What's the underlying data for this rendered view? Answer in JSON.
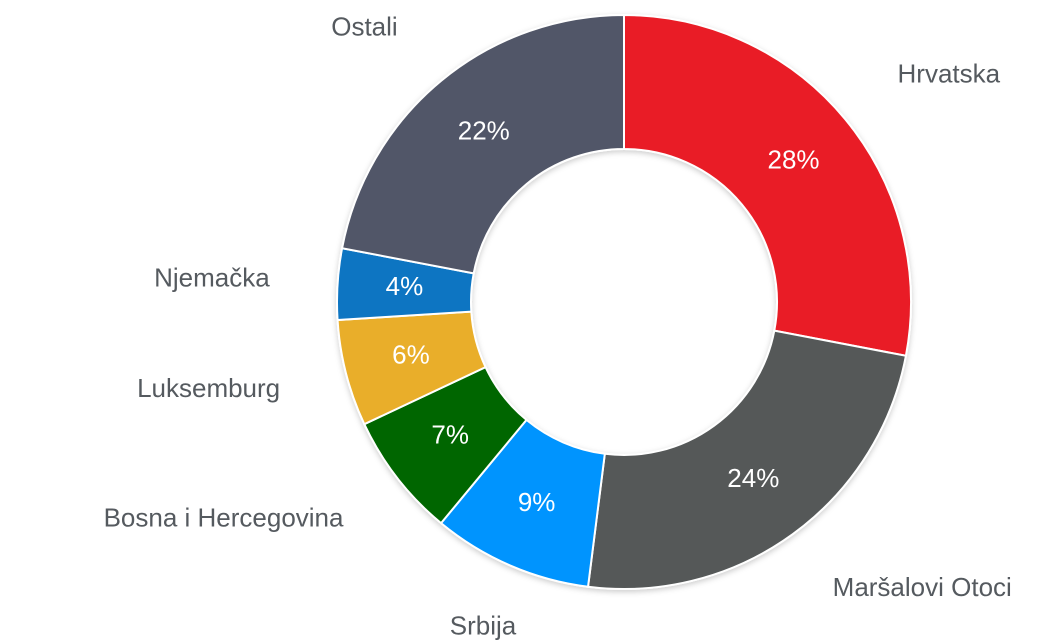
{
  "chart_data": {
    "type": "pie",
    "categories": [
      "Hrvatska",
      "Maršalovi Otoci",
      "Srbija",
      "Bosna i Hercegovina",
      "Luksemburg",
      "Njemačka",
      "Ostali"
    ],
    "values": [
      28,
      24,
      9,
      7,
      6,
      4,
      22
    ],
    "value_labels": [
      "28%",
      "24%",
      "9%",
      "7%",
      "6%",
      "4%",
      "22%"
    ],
    "colors": [
      "#e91f26",
      "#555959",
      "#0094fe",
      "#006600",
      "#e9ae2b",
      "#0a74c2",
      "#515667"
    ]
  }
}
